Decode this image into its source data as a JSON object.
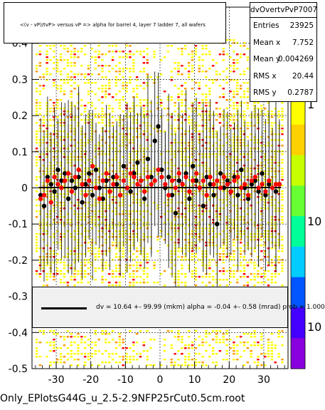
{
  "title": "<(v - vP)/tvP> versus   vP => alpha for barrel 4, layer 7 ladder 7, all wafers",
  "stats": {
    "name": "dvOvertvPvP7007",
    "rows": [
      {
        "key": "Entries",
        "value": "23925"
      },
      {
        "key": "Mean x",
        "value": "7.752"
      },
      {
        "key": "Mean y",
        "value": "0.004269"
      },
      {
        "key": "RMS x",
        "value": "20.44"
      },
      {
        "key": "RMS y",
        "value": "0.2787"
      }
    ]
  },
  "fit_text": "dv =   10.64 +- 99.99 (mkm) alpha =   -0.04 +-  0.58 (mrad) prob = 1.000",
  "footer": "Only_EPlotsG44G_u_2.5-2.9NFP25rCut0.5cm.root",
  "colors": {
    "profile_black": "#000000",
    "profile_red": "#ff0000",
    "fit": "#000000"
  },
  "chart_data": {
    "type": "scatter",
    "title": "<(v - vP)/tvP> versus   vP => alpha for barrel 4, layer 7 ladder 7, all wafers",
    "xlim": [
      -37,
      37
    ],
    "ylim": [
      -0.5,
      0.5
    ],
    "x_ticks": [
      -30,
      -20,
      -10,
      0,
      10,
      20,
      30
    ],
    "y_ticks": [
      -0.5,
      -0.4,
      -0.3,
      -0.2,
      -0.1,
      0,
      0.1,
      0.2,
      0.3,
      0.4
    ],
    "y_tick_labels": [
      "-0.5",
      "-0.4",
      "-0.3",
      "-0.2",
      "-0.1",
      "0",
      "0.1",
      "0.2",
      "0.3",
      "0.4"
    ],
    "colorbar": {
      "labels": [
        "1",
        "10",
        "10"
      ]
    },
    "fit": {
      "dv_mkm": 10.64,
      "alpha_mrad": -0.04
    },
    "series": [
      {
        "color": "black",
        "x": [
          -34.5,
          -33.5,
          -32.5,
          -31.5,
          -30.5,
          -29.5,
          -28.5,
          -27.5,
          -26.5,
          -25.5,
          -24.5,
          -23.5,
          -22.5,
          -21.5,
          -20.5,
          -19.5,
          -18.5,
          -17.5,
          -16.5,
          -15.5,
          -14.5,
          -13.5,
          -12.5,
          -11.5,
          -10.5,
          -9.5,
          -8.5,
          -7.5,
          -6.5,
          -5.5,
          -4.5,
          -3.5,
          -2.5,
          -1.5,
          -0.5,
          0.5,
          1.5,
          2.5,
          3.5,
          4.5,
          5.5,
          6.5,
          7.5,
          8.5,
          9.5,
          10.5,
          11.5,
          12.5,
          13.5,
          14.5,
          15.5,
          16.5,
          17.5,
          18.5,
          19.5,
          20.5,
          21.5,
          22.5,
          23.5,
          24.5,
          25.5,
          26.5,
          27.5,
          28.5,
          29.5,
          30.5,
          31.5,
          32.5,
          33.5,
          34.5
        ],
        "y": [
          -0.02,
          -0.05,
          0.03,
          0.01,
          -0.01,
          0.05,
          0.02,
          0.04,
          -0.03,
          0.02,
          0.0,
          0.03,
          -0.04,
          0.01,
          0.04,
          -0.02,
          0.05,
          0.0,
          -0.03,
          0.02,
          -0.01,
          0.03,
          0.01,
          -0.02,
          0.06,
          0.0,
          -0.01,
          0.04,
          0.07,
          0.02,
          -0.03,
          0.08,
          0.03,
          0.13,
          0.17,
          0.05,
          0.0,
          0.03,
          -0.02,
          -0.07,
          0.02,
          0.01,
          0.04,
          -0.03,
          0.06,
          0.02,
          0.0,
          -0.05,
          0.03,
          0.01,
          -0.02,
          -0.1,
          0.04,
          0.0,
          0.02,
          -0.01,
          0.03,
          -0.02,
          0.05,
          0.0,
          -0.03,
          0.01,
          0.02,
          -0.01,
          0.04,
          -0.02,
          0.01,
          0.0,
          -0.01,
          0.01
        ]
      },
      {
        "color": "red",
        "x": [
          -34.5,
          -33.5,
          -32.5,
          -31.5,
          -30.5,
          -29.5,
          -28.5,
          -27.5,
          -26.5,
          -25.5,
          -24.5,
          -23.5,
          -22.5,
          -21.5,
          -20.5,
          -19.5,
          -18.5,
          -17.5,
          -16.5,
          -15.5,
          -14.5,
          -13.5,
          -12.5,
          -11.5,
          -10.5,
          -9.5,
          -8.5,
          -7.5,
          -6.5,
          -5.5,
          -4.5,
          -3.5,
          -2.5,
          -1.5,
          -0.5,
          0.5,
          1.5,
          2.5,
          3.5,
          4.5,
          5.5,
          6.5,
          7.5,
          8.5,
          9.5,
          10.5,
          11.5,
          12.5,
          13.5,
          14.5,
          15.5,
          16.5,
          17.5,
          18.5,
          19.5,
          20.5,
          21.5,
          22.5,
          23.5,
          24.5,
          25.5,
          26.5,
          27.5,
          28.5,
          29.5,
          30.5,
          31.5,
          32.5,
          33.5,
          34.5
        ],
        "y": [
          -0.03,
          -0.02,
          0.02,
          -0.04,
          0.03,
          0.01,
          0.0,
          0.02,
          0.04,
          -0.01,
          0.03,
          0.05,
          0.01,
          -0.02,
          0.02,
          0.06,
          0.0,
          -0.03,
          0.02,
          0.04,
          -0.01,
          0.01,
          0.03,
          -0.02,
          0.02,
          0.0,
          0.04,
          0.03,
          0.01,
          0.02,
          -0.01,
          0.03,
          0.01,
          0.02,
          0.05,
          0.03,
          0.01,
          -0.02,
          0.02,
          0.0,
          0.04,
          0.01,
          0.03,
          -0.01,
          0.02,
          0.04,
          0.0,
          0.02,
          -0.02,
          0.03,
          0.01,
          0.02,
          0.0,
          0.03,
          0.01,
          -0.01,
          0.02,
          0.03,
          0.0,
          0.01,
          -0.02,
          0.02,
          0.03,
          0.0,
          0.01,
          -0.01,
          0.02,
          0.0,
          0.01,
          0.01
        ]
      }
    ]
  }
}
